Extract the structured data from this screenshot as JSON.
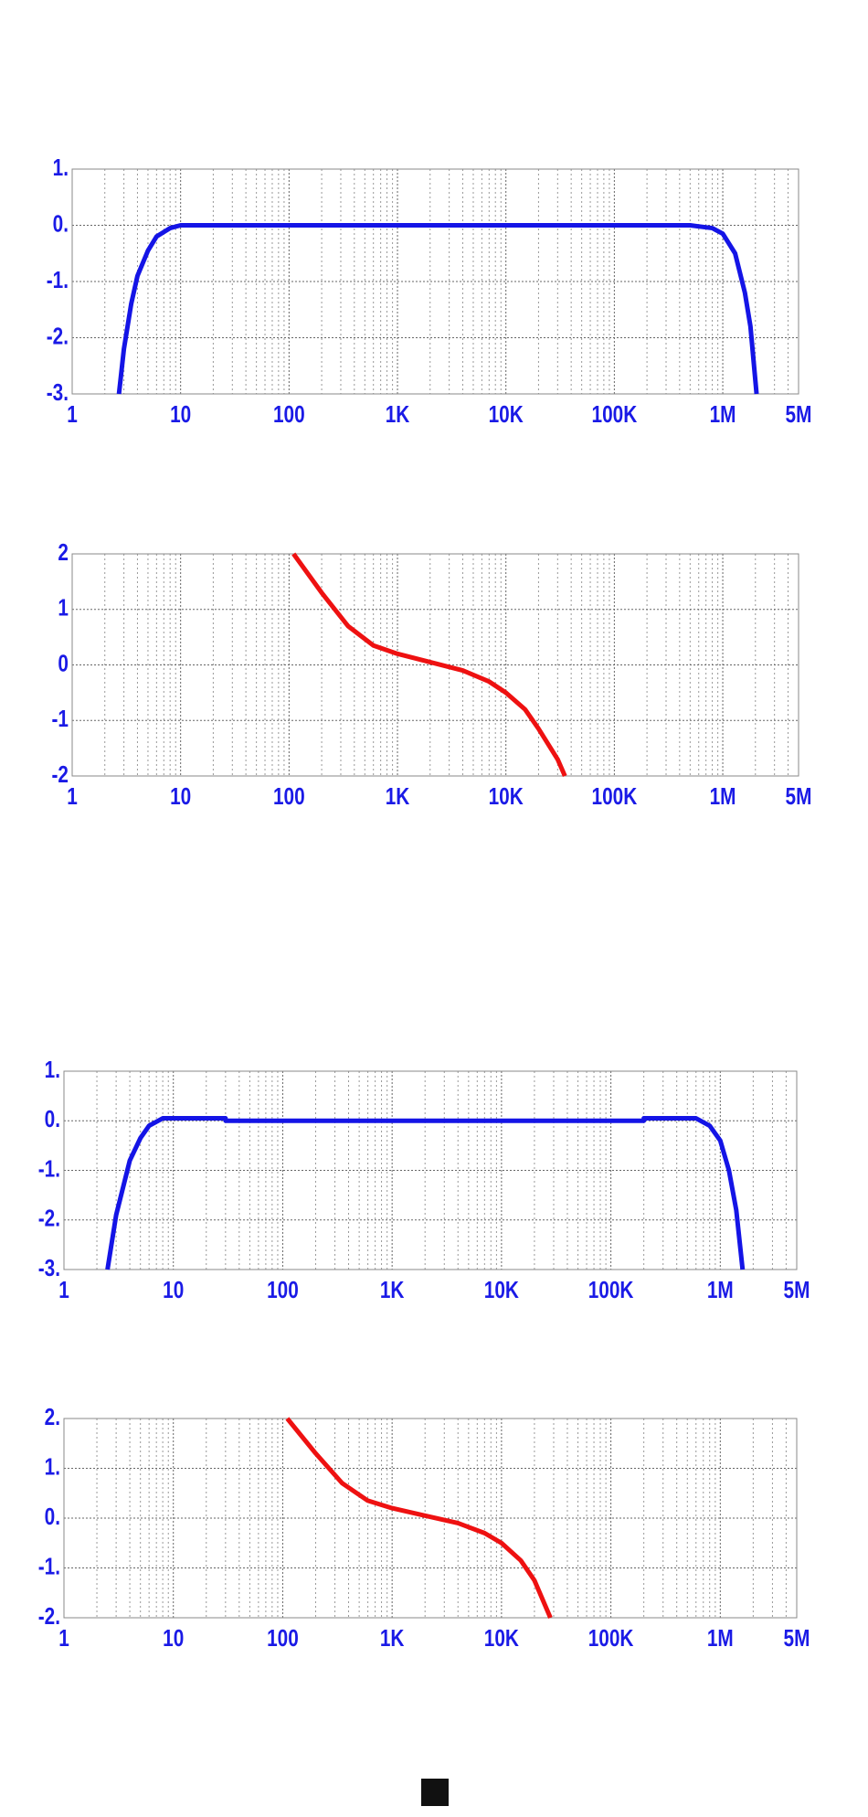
{
  "chart_data": [
    {
      "type": "line",
      "xscale": "log",
      "grid": true,
      "minor_grid": true,
      "xlim": [
        1,
        5000000
      ],
      "ylim": [
        -3,
        1
      ],
      "xticks": [
        1,
        10,
        {
          "value": 100,
          "label": "100"
        },
        {
          "value": 1000,
          "label": "1K"
        },
        {
          "value": 10000,
          "label": "10K"
        },
        {
          "value": 100000,
          "label": "100K"
        },
        {
          "value": 1000000,
          "label": "1M"
        },
        {
          "value": 5000000,
          "label": "5M"
        }
      ],
      "yticks": [
        {
          "value": 1,
          "label": "1."
        },
        {
          "value": 0,
          "label": "0."
        },
        {
          "value": -1,
          "label": "-1."
        },
        {
          "value": -2,
          "label": "-2."
        },
        {
          "value": -3,
          "label": "-3."
        }
      ],
      "x": [
        2.7,
        3,
        3.5,
        4,
        5,
        6,
        8,
        10,
        100,
        1000,
        10000,
        100000,
        500000,
        800000,
        1000000,
        1300000,
        1600000,
        1800000,
        2050000
      ],
      "series": [
        {
          "color": "#1414e6",
          "values": [
            -3,
            -2.2,
            -1.4,
            -0.9,
            -0.45,
            -0.2,
            -0.05,
            0,
            0,
            0,
            0,
            0,
            0,
            -0.05,
            -0.15,
            -0.5,
            -1.2,
            -1.8,
            -3
          ]
        }
      ]
    },
    {
      "type": "line",
      "xscale": "log",
      "grid": true,
      "minor_grid": true,
      "xlim": [
        1,
        5000000
      ],
      "ylim": [
        -2,
        2
      ],
      "xticks": [
        1,
        10,
        {
          "value": 100,
          "label": "100"
        },
        {
          "value": 1000,
          "label": "1K"
        },
        {
          "value": 10000,
          "label": "10K"
        },
        {
          "value": 100000,
          "label": "100K"
        },
        {
          "value": 1000000,
          "label": "1M"
        },
        {
          "value": 5000000,
          "label": "5M"
        }
      ],
      "yticks": [
        2,
        1,
        0,
        -1,
        -2
      ],
      "x": [
        110,
        200,
        350,
        600,
        1000,
        2000,
        4000,
        7000,
        10000,
        15000,
        20000,
        30000,
        35000
      ],
      "series": [
        {
          "color": "#ee1111",
          "values": [
            2,
            1.3,
            0.7,
            0.35,
            0.2,
            0.05,
            -0.1,
            -0.3,
            -0.5,
            -0.8,
            -1.15,
            -1.7,
            -2
          ]
        }
      ]
    },
    {
      "type": "line",
      "xscale": "log",
      "grid": true,
      "minor_grid": true,
      "xlim": [
        1,
        5000000
      ],
      "ylim": [
        -3,
        1
      ],
      "xticks": [
        1,
        10,
        {
          "value": 100,
          "label": "100"
        },
        {
          "value": 1000,
          "label": "1K"
        },
        {
          "value": 10000,
          "label": "10K"
        },
        {
          "value": 100000,
          "label": "100K"
        },
        {
          "value": 1000000,
          "label": "1M"
        },
        {
          "value": 5000000,
          "label": "5M"
        }
      ],
      "yticks": [
        {
          "value": 1,
          "label": "1."
        },
        {
          "value": 0,
          "label": "0."
        },
        {
          "value": -1,
          "label": "-1."
        },
        {
          "value": -2,
          "label": "-2."
        },
        {
          "value": -3,
          "label": "-3."
        }
      ],
      "x": [
        2.5,
        3,
        4,
        5,
        6,
        8,
        10,
        30,
        30,
        1000,
        200000,
        200000,
        600000,
        800000,
        1000000,
        1200000,
        1400000,
        1600000
      ],
      "series": [
        {
          "color": "#1414e6",
          "values": [
            -3,
            -1.9,
            -0.8,
            -0.35,
            -0.1,
            0.05,
            0.05,
            0.05,
            0,
            0,
            0,
            0.05,
            0.05,
            -0.1,
            -0.4,
            -1,
            -1.8,
            -3
          ]
        }
      ]
    },
    {
      "type": "line",
      "xscale": "log",
      "grid": true,
      "minor_grid": true,
      "xlim": [
        1,
        5000000
      ],
      "ylim": [
        -2,
        2
      ],
      "xticks": [
        1,
        10,
        {
          "value": 100,
          "label": "100"
        },
        {
          "value": 1000,
          "label": "1K"
        },
        {
          "value": 10000,
          "label": "10K"
        },
        {
          "value": 100000,
          "label": "100K"
        },
        {
          "value": 1000000,
          "label": "1M"
        },
        {
          "value": 5000000,
          "label": "5M"
        }
      ],
      "yticks": [
        {
          "value": 2,
          "label": "2."
        },
        {
          "value": 1,
          "label": "1."
        },
        {
          "value": 0,
          "label": "0."
        },
        {
          "value": -1,
          "label": "-1."
        },
        {
          "value": -2,
          "label": "-2."
        }
      ],
      "x": [
        110,
        200,
        350,
        600,
        1000,
        2000,
        4000,
        7000,
        10000,
        15000,
        20000,
        28000
      ],
      "series": [
        {
          "color": "#ee1111",
          "values": [
            2,
            1.3,
            0.7,
            0.35,
            0.2,
            0.05,
            -0.1,
            -0.3,
            -0.5,
            -0.85,
            -1.25,
            -2
          ]
        }
      ]
    }
  ]
}
